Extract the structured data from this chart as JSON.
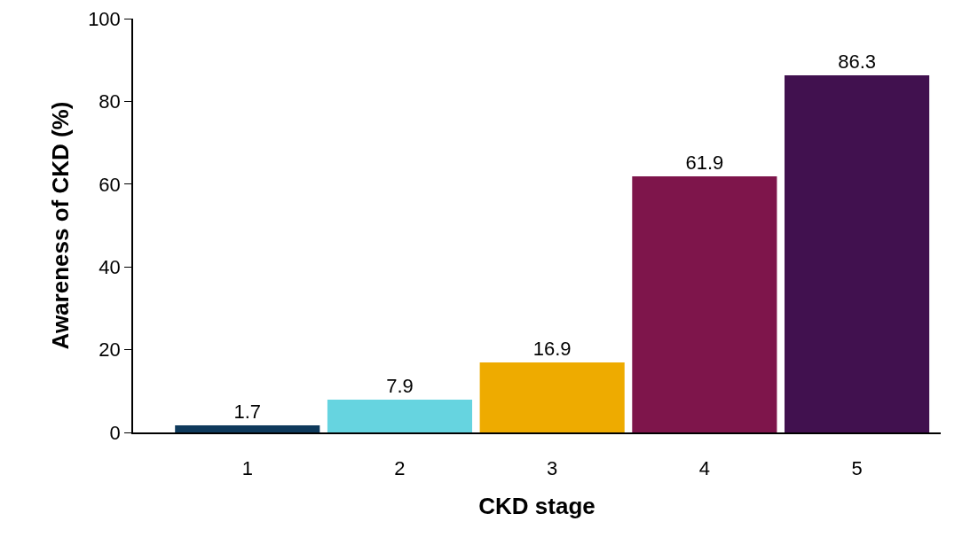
{
  "chart_data": {
    "type": "bar",
    "xlabel": "CKD stage",
    "ylabel": "Awareness of CKD (%)",
    "categories": [
      "1",
      "2",
      "3",
      "4",
      "5"
    ],
    "values": [
      1.7,
      7.9,
      16.9,
      61.9,
      86.3
    ],
    "colors": [
      "#0f3a5c",
      "#66d4e0",
      "#eeab00",
      "#7e154b",
      "#41114f"
    ],
    "ylim": [
      0,
      100
    ],
    "yticks": [
      0,
      20,
      40,
      60,
      80,
      100
    ],
    "grid": false,
    "data_labels": true
  }
}
